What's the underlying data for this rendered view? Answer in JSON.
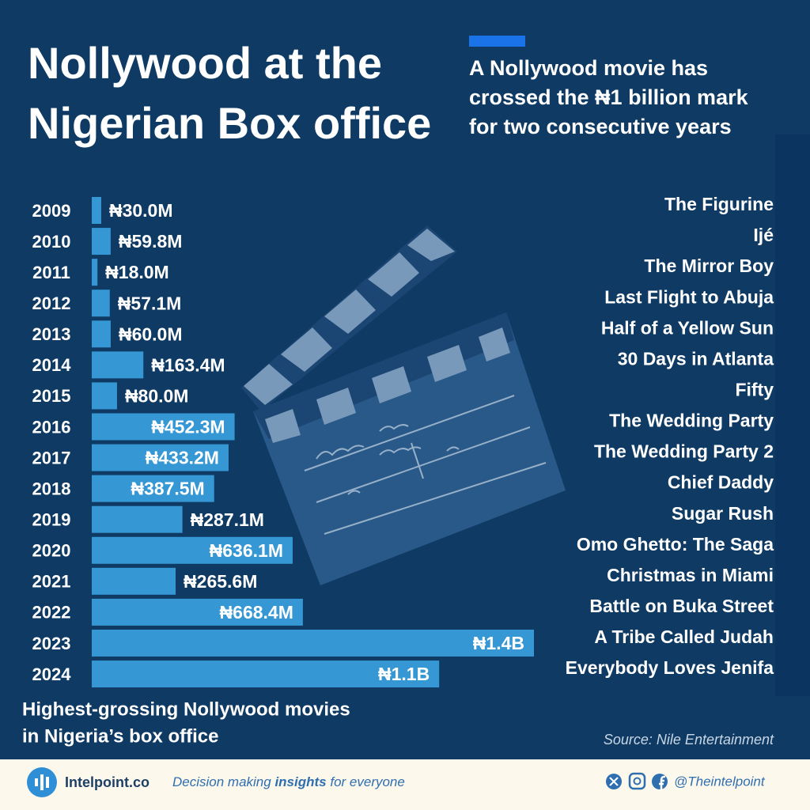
{
  "chart_data": {
    "type": "bar",
    "orientation": "horizontal",
    "title": [
      "Nollywood at the",
      "Nigerian Box office"
    ],
    "subtitle": [
      "A Nollywood movie has",
      "crossed the ₦1 billion mark",
      "for two consecutive years"
    ],
    "caption": [
      "Highest-grossing Nollywood movies",
      "in Nigeria’s box office"
    ],
    "source": "Source: Nile Entertainment",
    "categories": [
      "2009",
      "2010",
      "2011",
      "2012",
      "2013",
      "2014",
      "2015",
      "2016",
      "2017",
      "2018",
      "2019",
      "2020",
      "2021",
      "2022",
      "2023",
      "2024"
    ],
    "movies": [
      "The Figurine",
      "Ijé",
      "The Mirror Boy",
      "Last Flight to Abuja",
      "Half of a Yellow Sun",
      "30 Days in Atlanta",
      "Fifty",
      "The Wedding Party",
      "The Wedding Party 2",
      "Chief Daddy",
      "Sugar Rush",
      "Omo Ghetto: The Saga",
      "Christmas in Miami",
      "Battle on Buka Street",
      "A Tribe Called Judah",
      "Everybody Loves Jenifa"
    ],
    "values": [
      30.0,
      59.8,
      18.0,
      57.1,
      60.0,
      163.4,
      80.0,
      452.3,
      433.2,
      387.5,
      287.1,
      636.1,
      265.6,
      668.4,
      1400,
      1100
    ],
    "value_labels": [
      "₦30.0M",
      "₦59.8M",
      "₦18.0M",
      "₦57.1M",
      "₦60.0M",
      "₦163.4M",
      "₦80.0M",
      "₦452.3M",
      "₦433.2M",
      "₦387.5M",
      "₦287.1M",
      "₦636.1M",
      "₦265.6M",
      "₦668.4M",
      "₦1.4B",
      "₦1.1B"
    ],
    "color": "#3597d3"
  },
  "footer": {
    "brand": "Intelpoint.co",
    "tagline": [
      "Decision making ",
      "insights",
      " for everyone"
    ],
    "handle": "@Theintelpoint"
  }
}
